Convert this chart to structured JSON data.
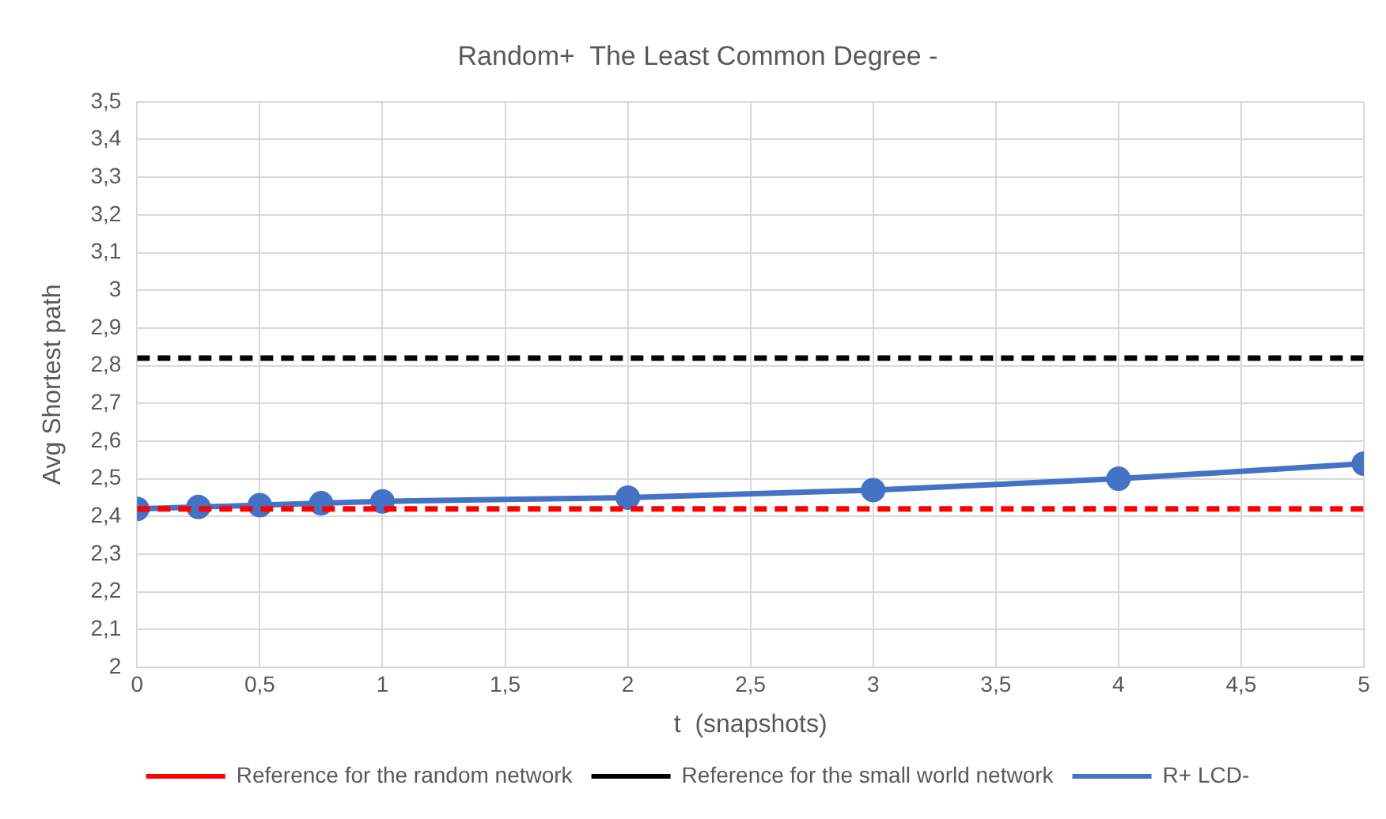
{
  "chart_data": {
    "type": "line",
    "title": "Random+  The Least Common Degree -",
    "xlabel": "t  (snapshots)",
    "ylabel": "Avg Shortest path",
    "xlim": [
      0,
      5
    ],
    "xticks": [
      0,
      {
        "value": 0.5,
        "label": "0,5"
      },
      1,
      {
        "value": 1.5,
        "label": "1,5"
      },
      2,
      {
        "value": 2.5,
        "label": "2,5"
      },
      3,
      {
        "value": 3.5,
        "label": "3,5"
      },
      4,
      {
        "value": 4.5,
        "label": "4,5"
      },
      5
    ],
    "ylim": [
      2,
      3.5
    ],
    "yticks": [
      2,
      {
        "value": 2.1,
        "label": "2,1"
      },
      {
        "value": 2.2,
        "label": "2,2"
      },
      {
        "value": 2.3,
        "label": "2,3"
      },
      {
        "value": 2.4,
        "label": "2,4"
      },
      {
        "value": 2.5,
        "label": "2,5"
      },
      {
        "value": 2.6,
        "label": "2,6"
      },
      {
        "value": 2.7,
        "label": "2,7"
      },
      {
        "value": 2.8,
        "label": "2,8"
      },
      {
        "value": 2.9,
        "label": "2,9"
      },
      3,
      {
        "value": 3.1,
        "label": "3,1"
      },
      {
        "value": 3.2,
        "label": "3,2"
      },
      {
        "value": 3.3,
        "label": "3,3"
      },
      {
        "value": 3.4,
        "label": "3,4"
      },
      {
        "value": 3.5,
        "label": "3,5"
      }
    ],
    "grid": true,
    "legend": "bottom",
    "series": [
      {
        "name": "Reference for the random network",
        "color": "#ff0000",
        "x": [
          0,
          5
        ],
        "values": [
          2.42,
          2.42
        ],
        "line_style": "dashed",
        "marker": "none"
      },
      {
        "name": "Reference for the small world network",
        "color": "#000000",
        "x": [
          0,
          5
        ],
        "values": [
          2.82,
          2.82
        ],
        "line_style": "dashed",
        "marker": "none"
      },
      {
        "name": "R+ LCD-",
        "color": "#4472c4",
        "x": [
          0,
          0.25,
          0.5,
          0.75,
          1,
          2,
          3,
          4,
          5
        ],
        "values": [
          2.42,
          2.425,
          2.43,
          2.435,
          2.44,
          2.45,
          2.47,
          2.5,
          2.54
        ],
        "line_style": "solid",
        "marker": "circle"
      }
    ]
  }
}
